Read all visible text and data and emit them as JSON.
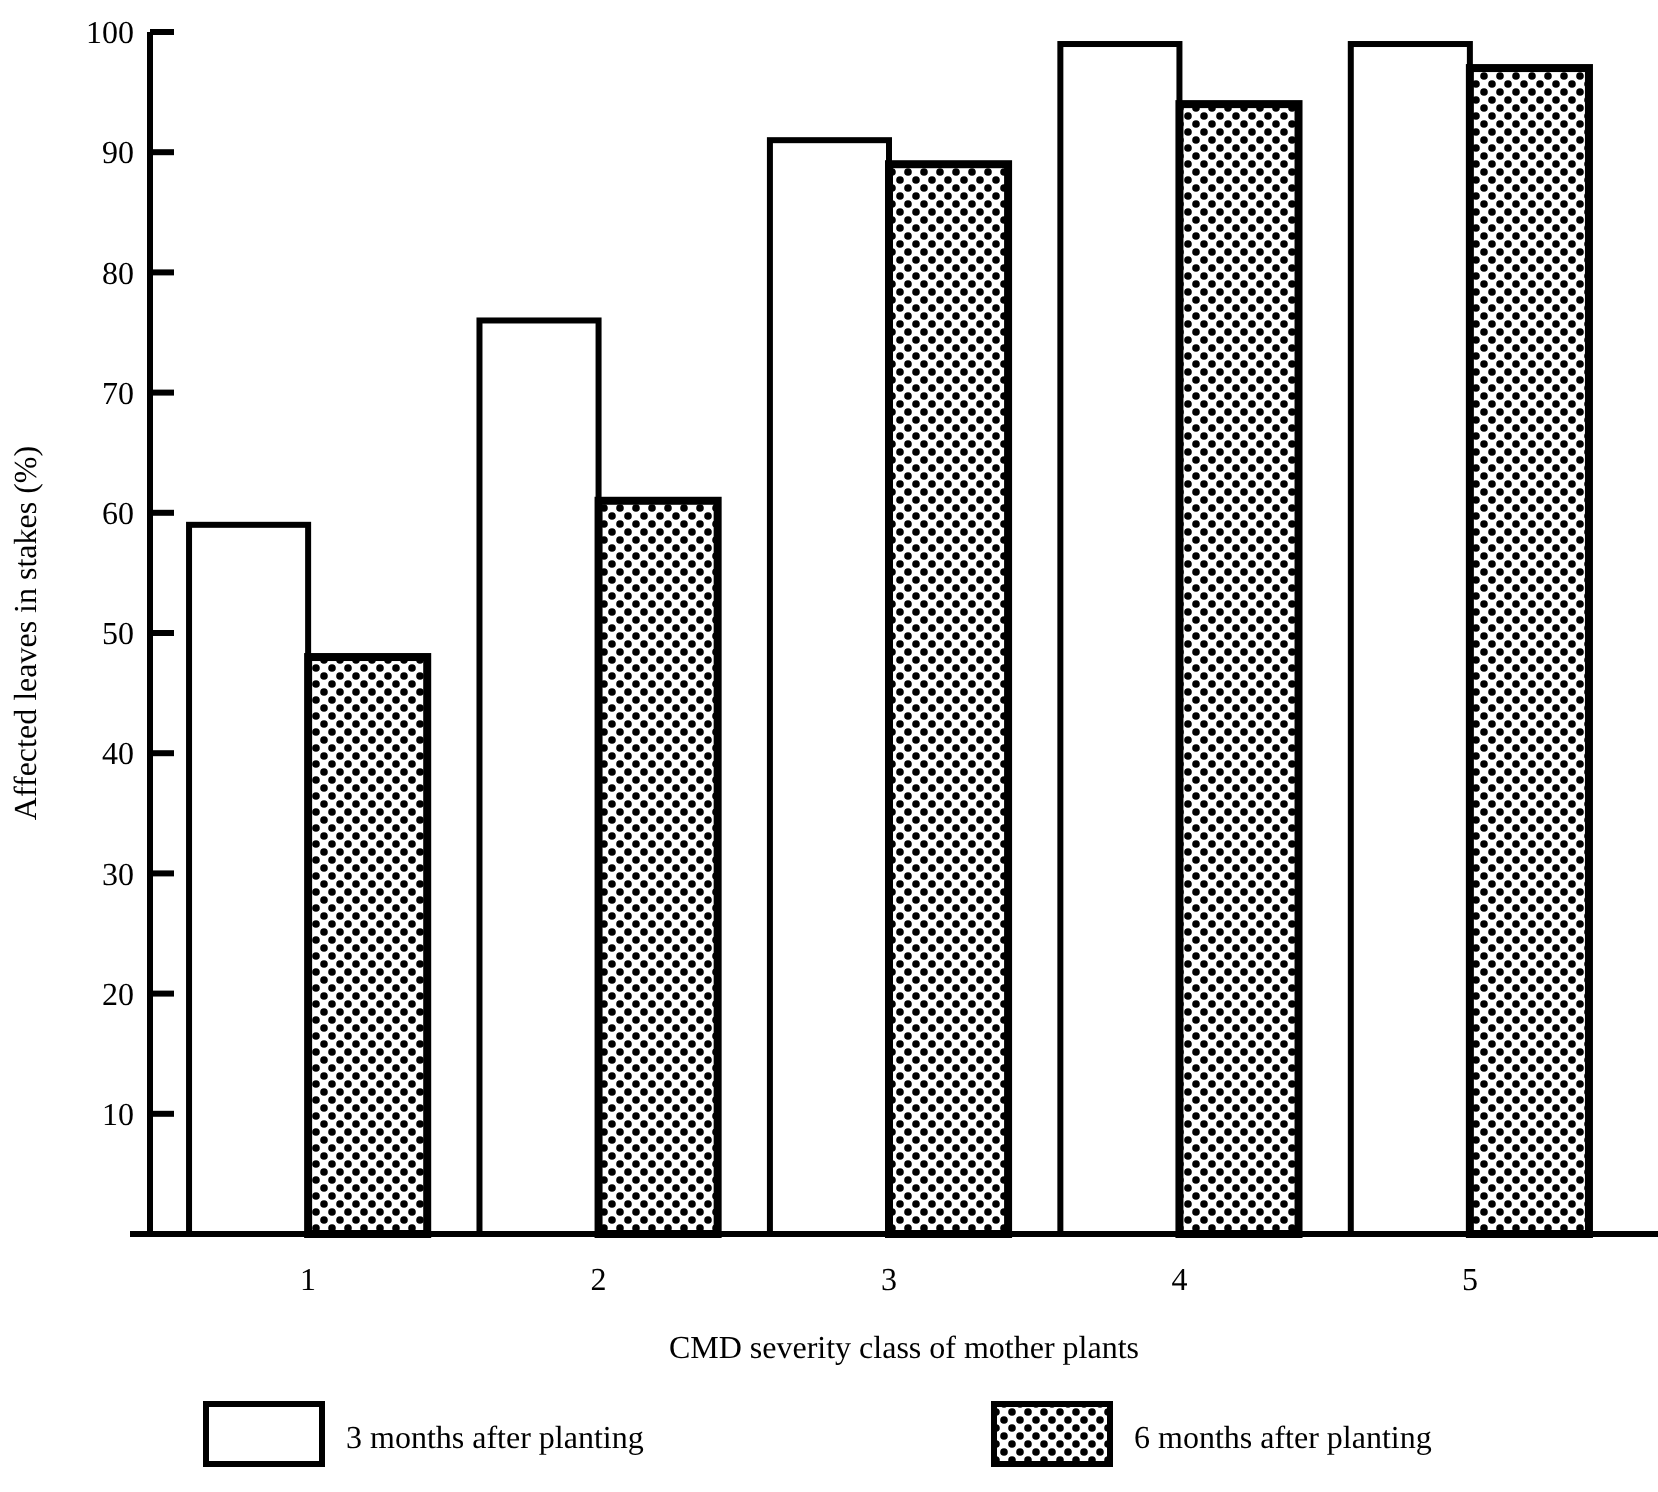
{
  "chart_data": {
    "type": "bar",
    "xlabel": "CMD severity class of mother plants",
    "ylabel": "Affected leaves in stakes (%)",
    "categories": [
      "1",
      "2",
      "3",
      "4",
      "5"
    ],
    "series": [
      {
        "name": "3 months after planting",
        "color": "#ffffff",
        "values": [
          59,
          76,
          91,
          99,
          99
        ]
      },
      {
        "name": "6 months after planting",
        "color": "#000000",
        "values": [
          48,
          61,
          89,
          94,
          97
        ]
      }
    ],
    "ylim": [
      0,
      100
    ],
    "yticks": [
      10,
      20,
      30,
      40,
      50,
      60,
      70,
      80,
      90,
      100
    ],
    "grid": false,
    "legend": "bottom"
  }
}
